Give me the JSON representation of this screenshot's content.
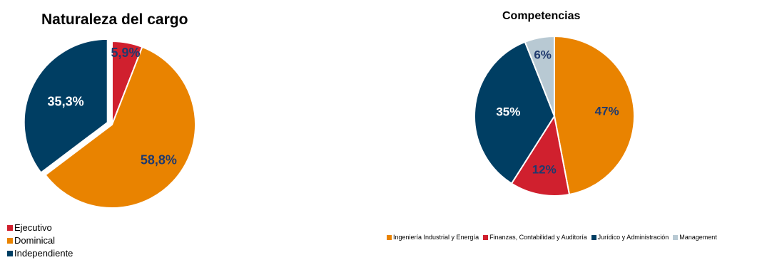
{
  "chart_data": [
    {
      "type": "pie",
      "title": "Naturaleza del cargo",
      "categories": [
        "Ejecutivo",
        "Dominical",
        "Independiente"
      ],
      "values": [
        5.9,
        58.8,
        35.3
      ],
      "labels": [
        "5,9%",
        "58,8%",
        "35,3%"
      ],
      "colors": [
        "#d0202e",
        "#e98300",
        "#003e63"
      ],
      "label_colors": [
        "#1f3a6e",
        "#1f3a6e",
        "#ffffff"
      ],
      "exploded": [
        "Independiente"
      ],
      "legend": "bottom-left"
    },
    {
      "type": "pie",
      "title": "Competencias",
      "categories": [
        "Ingeniería Industrial y Energía",
        "Finanzas, Contabilidad y Auditoría",
        "Jurídico y Administración",
        "Management"
      ],
      "values": [
        47,
        12,
        35,
        6
      ],
      "labels": [
        "47%",
        "12%",
        "35%",
        "6%"
      ],
      "colors": [
        "#e98300",
        "#d0202e",
        "#003e63",
        "#b8c9d3"
      ],
      "label_colors": [
        "#1f3a6e",
        "#1f3a6e",
        "#ffffff",
        "#1f3a6e"
      ],
      "legend": "bottom"
    }
  ]
}
